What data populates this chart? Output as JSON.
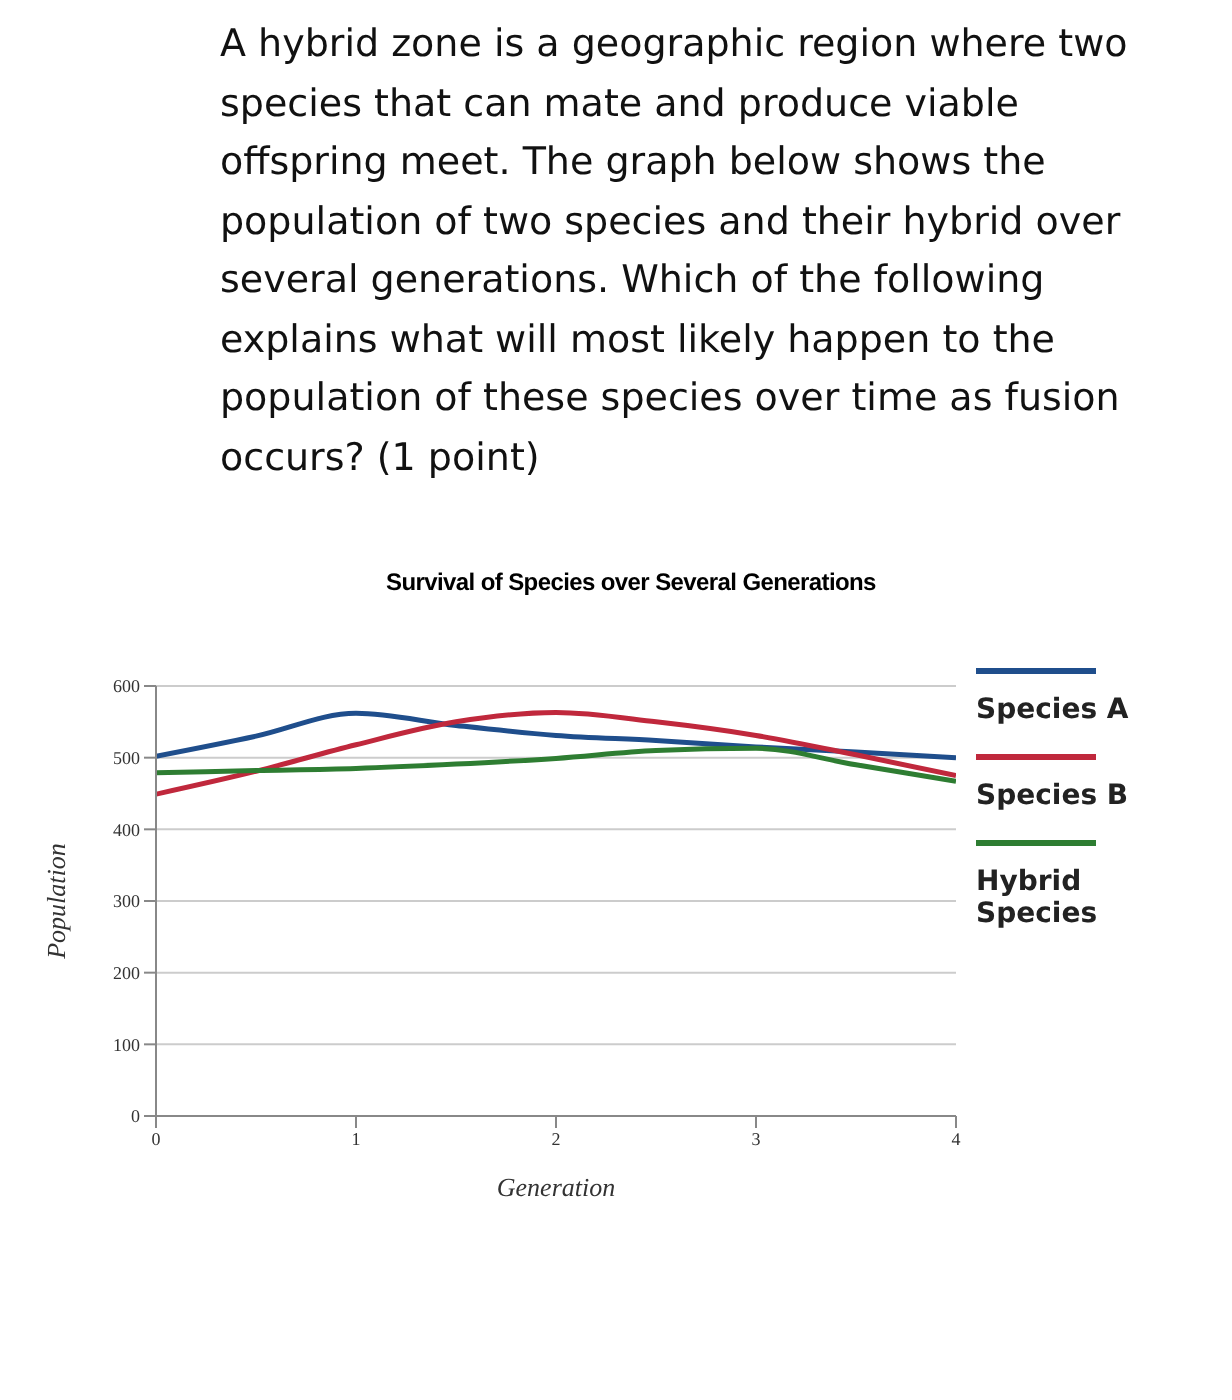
{
  "chart_data": {
    "type": "line",
    "title": "Survival of Species over Several Generations",
    "xlabel": "Generation",
    "ylabel": "Population",
    "annotations": [
      "A hybrid zone is a geographic region where two species that can mate and produce viable offspring meet. The graph below shows the population of two species and their hybrid over several generations. Which of the following explains what will most likely happen to the population of these species over time as fusion occurs? (1 point)"
    ],
    "x": [
      0,
      0.5,
      1,
      1.5,
      2,
      2.5,
      3,
      3.5,
      4
    ],
    "series": [
      {
        "name": "Species A",
        "color": "#1f4e8c",
        "values": [
          502,
          530,
          562,
          545,
          531,
          524,
          515,
          508,
          500
        ]
      },
      {
        "name": "Species B",
        "color": "#c0283c",
        "values": [
          449,
          481,
          518,
          550,
          563,
          550,
          531,
          504,
          475
        ]
      },
      {
        "name": "Hybrid Species",
        "color": "#2e7d32",
        "values": [
          479,
          482,
          485,
          491,
          499,
          510,
          513,
          490,
          467
        ]
      }
    ],
    "xlim": [
      0,
      4
    ],
    "xticks": [
      0,
      1,
      2,
      3,
      4
    ],
    "ylim": [
      0,
      600
    ],
    "yticks": [
      0,
      100,
      200,
      300,
      400,
      500,
      600
    ],
    "grid": "y",
    "legend": "right",
    "marker": "none",
    "line_style": "solid"
  }
}
